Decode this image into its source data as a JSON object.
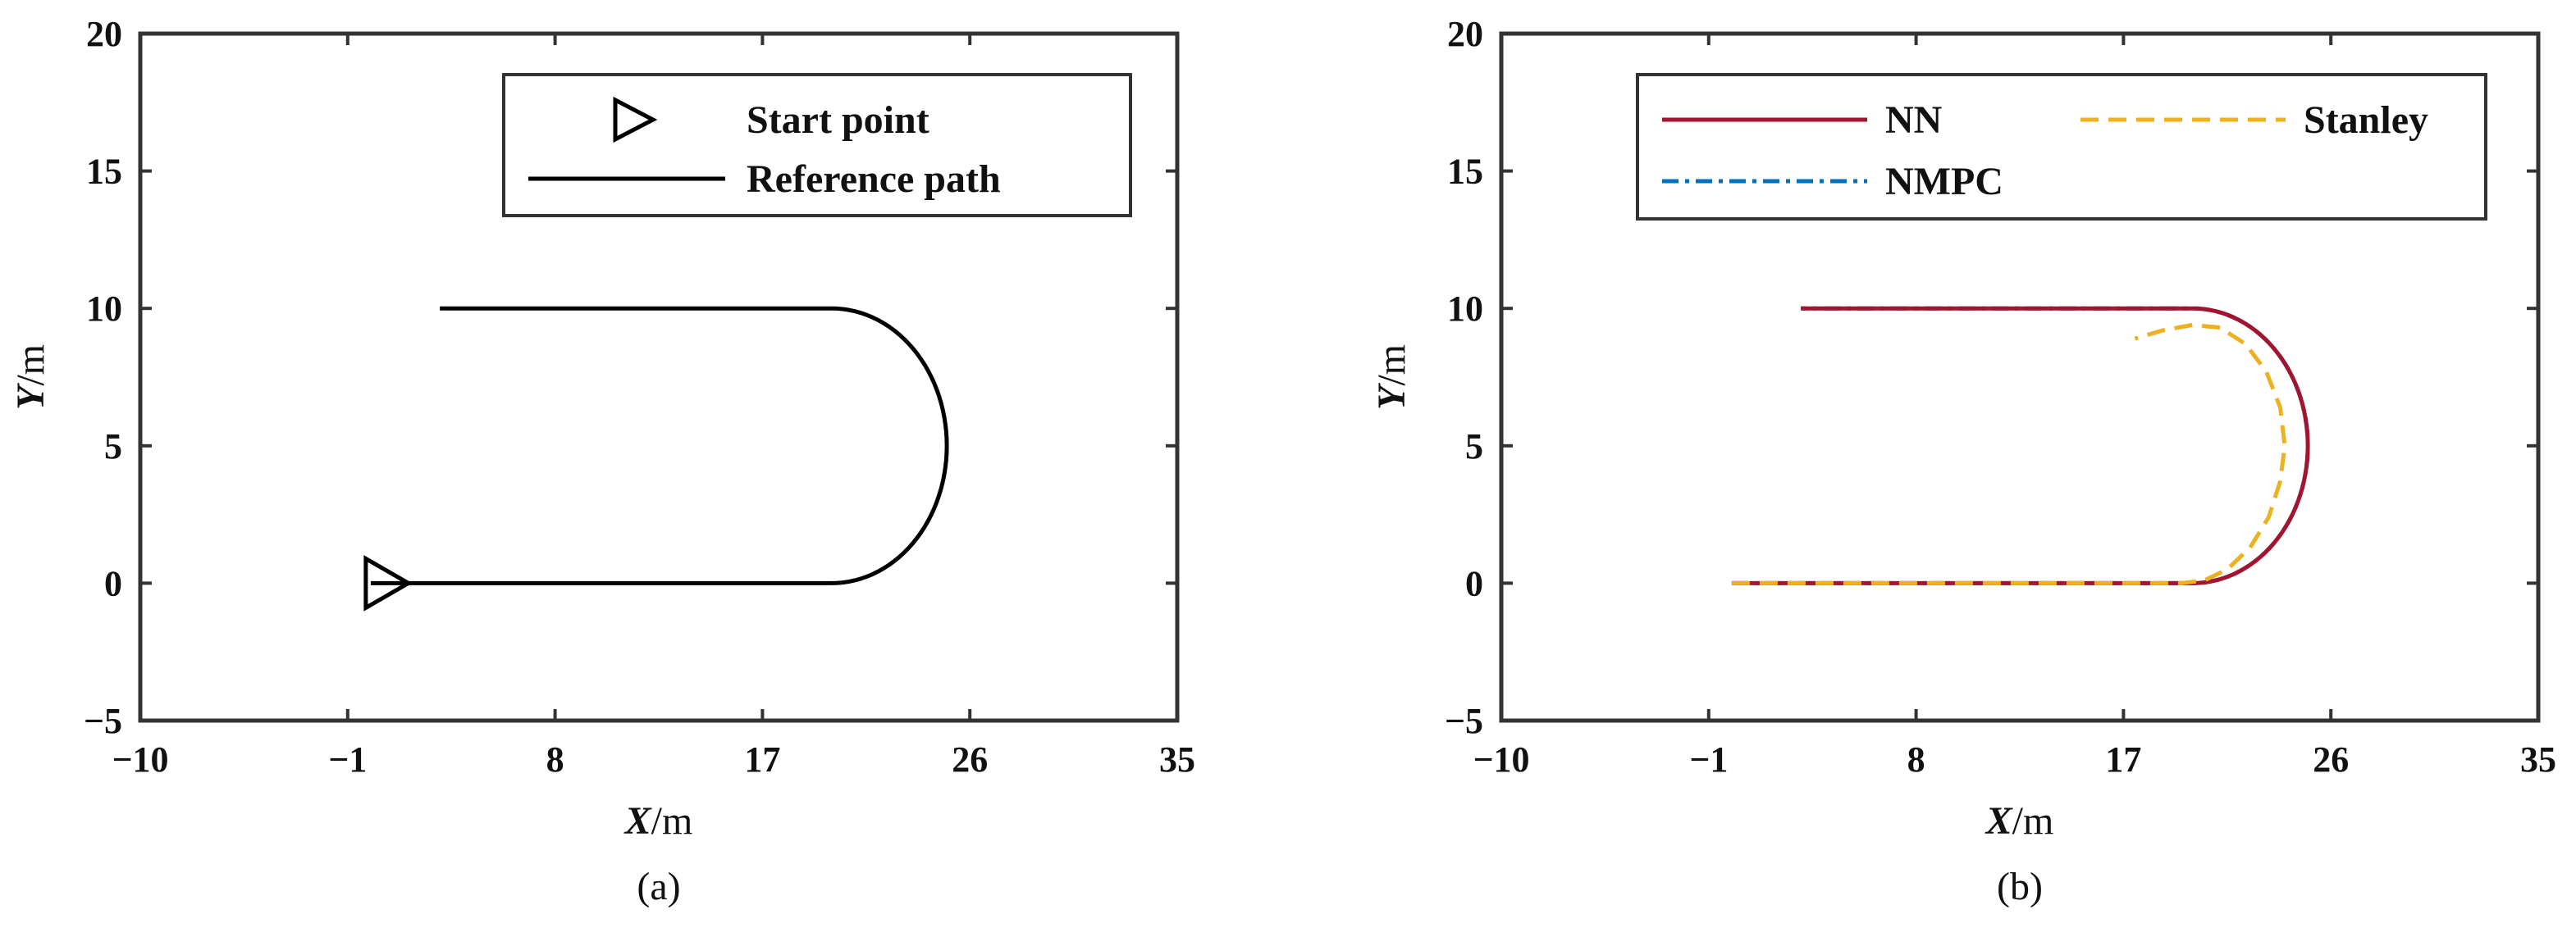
{
  "chart_data": [
    {
      "type": "line",
      "panel_label": "(a)",
      "xlabel_var": "X",
      "xlabel_unit": "/m",
      "ylabel_var": "Y",
      "ylabel_unit": "/m",
      "xlim": [
        -10,
        35
      ],
      "ylim": [
        -5,
        20
      ],
      "xticks": [
        -10,
        -1,
        8,
        17,
        26,
        35
      ],
      "yticks": [
        -5,
        0,
        5,
        10,
        15,
        20
      ],
      "xtick_labels": [
        "−10",
        "−1",
        "8",
        "17",
        "26",
        "35"
      ],
      "ytick_labels": [
        "−5",
        "0",
        "5",
        "10",
        "15",
        "20"
      ],
      "grid": false,
      "legend_position": "top-right",
      "legend": [
        {
          "label": "Start point",
          "style": "triangle-marker",
          "color": "#000000"
        },
        {
          "label": "Reference path",
          "style": "solid",
          "color": "#000000"
        }
      ],
      "start_point": {
        "x": 0,
        "y": 0
      },
      "series": [
        {
          "name": "Reference path",
          "style": "solid",
          "color": "#000000",
          "segments": [
            {
              "kind": "line",
              "from": [
                0,
                0
              ],
              "to": [
                20,
                0
              ]
            },
            {
              "kind": "arc",
              "center": [
                20,
                5
              ],
              "radius": 5,
              "from_deg": -90,
              "to_deg": 90
            },
            {
              "kind": "line",
              "from": [
                20,
                10
              ],
              "to": [
                3,
                10
              ]
            }
          ]
        }
      ]
    },
    {
      "type": "line",
      "panel_label": "(b)",
      "xlabel_var": "X",
      "xlabel_unit": "/m",
      "ylabel_var": "Y",
      "ylabel_unit": "/m",
      "xlim": [
        -10,
        35
      ],
      "ylim": [
        -5,
        20
      ],
      "xticks": [
        -10,
        -1,
        8,
        17,
        26,
        35
      ],
      "yticks": [
        -5,
        0,
        5,
        10,
        15,
        20
      ],
      "xtick_labels": [
        "−10",
        "−1",
        "8",
        "17",
        "26",
        "35"
      ],
      "ytick_labels": [
        "−5",
        "0",
        "5",
        "10",
        "15",
        "20"
      ],
      "grid": false,
      "legend_position": "top",
      "legend": [
        {
          "label": "NN",
          "style": "solid",
          "color": "#A2142F"
        },
        {
          "label": "Stanley",
          "style": "dashed",
          "color": "#EDB120"
        },
        {
          "label": "NMPC",
          "style": "dashdot",
          "color": "#0072BD"
        }
      ],
      "series": [
        {
          "name": "NMPC",
          "style": "dashdot",
          "color": "#0072BD",
          "segments": [
            {
              "kind": "line",
              "from": [
                0,
                0
              ],
              "to": [
                20,
                0
              ]
            },
            {
              "kind": "arc",
              "center": [
                20,
                5
              ],
              "radius": 5,
              "from_deg": -90,
              "to_deg": 90
            },
            {
              "kind": "line",
              "from": [
                20,
                10
              ],
              "to": [
                3,
                10
              ]
            }
          ]
        },
        {
          "name": "NN",
          "style": "solid",
          "color": "#A2142F",
          "segments": [
            {
              "kind": "line",
              "from": [
                0,
                0
              ],
              "to": [
                20,
                0
              ]
            },
            {
              "kind": "arc",
              "center": [
                20,
                5
              ],
              "radius": 5,
              "from_deg": -90,
              "to_deg": 90
            },
            {
              "kind": "line",
              "from": [
                20,
                10
              ],
              "to": [
                3,
                10
              ]
            }
          ]
        },
        {
          "name": "Stanley",
          "style": "dashed",
          "color": "#EDB120",
          "points": [
            [
              0,
              0
            ],
            [
              5,
              0
            ],
            [
              10,
              0
            ],
            [
              15,
              0
            ],
            [
              19.5,
              0
            ],
            [
              20.5,
              0.1
            ],
            [
              21.5,
              0.5
            ],
            [
              22.5,
              1.3
            ],
            [
              23.3,
              2.4
            ],
            [
              23.8,
              3.7
            ],
            [
              24.0,
              5.0
            ],
            [
              23.8,
              6.4
            ],
            [
              23.2,
              7.7
            ],
            [
              22.3,
              8.7
            ],
            [
              21.2,
              9.3
            ],
            [
              20.0,
              9.4
            ],
            [
              18.7,
              9.2
            ],
            [
              17.5,
              8.9
            ]
          ]
        }
      ]
    }
  ]
}
